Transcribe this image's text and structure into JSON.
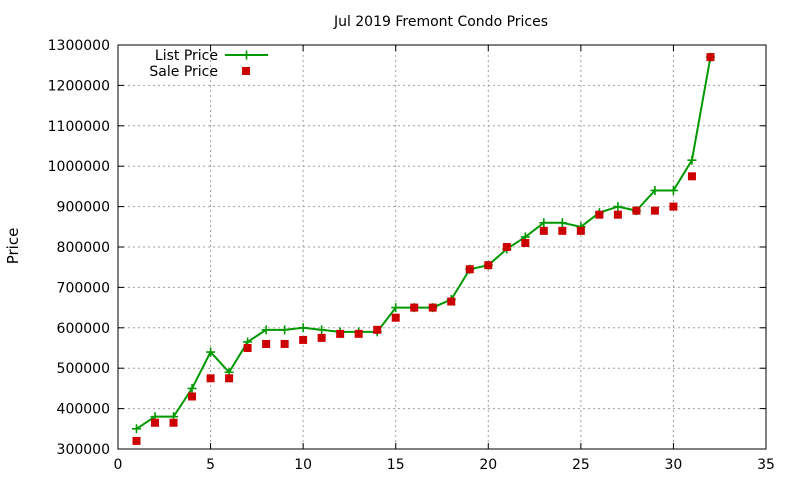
{
  "chart_data": {
    "type": "line",
    "title": "Jul 2019 Fremont Condo Prices",
    "xlabel": "",
    "ylabel": "Price",
    "xlim": [
      0,
      35
    ],
    "ylim": [
      300000,
      1300000
    ],
    "xticks": [
      0,
      5,
      10,
      15,
      20,
      25,
      30,
      35
    ],
    "yticks": [
      300000,
      400000,
      500000,
      600000,
      700000,
      800000,
      900000,
      1000000,
      1100000,
      1200000,
      1300000
    ],
    "grid": true,
    "legend_position": "top-left",
    "series": [
      {
        "name": "List Price",
        "style": "line-plus",
        "color": "#009900",
        "x": [
          1,
          2,
          3,
          4,
          5,
          6,
          7,
          8,
          9,
          10,
          11,
          12,
          13,
          14,
          15,
          16,
          17,
          18,
          19,
          20,
          21,
          22,
          23,
          24,
          25,
          26,
          27,
          28,
          29,
          30,
          31,
          32
        ],
        "y": [
          350000,
          380000,
          380000,
          450000,
          540000,
          490000,
          565000,
          595000,
          595000,
          600000,
          595000,
          590000,
          590000,
          590000,
          650000,
          650000,
          650000,
          670000,
          745000,
          755000,
          795000,
          825000,
          860000,
          860000,
          850000,
          885000,
          900000,
          890000,
          940000,
          940000,
          1015000,
          1270000
        ]
      },
      {
        "name": "Sale Price",
        "style": "square",
        "color": "#cc0000",
        "x": [
          1,
          2,
          3,
          4,
          5,
          6,
          7,
          8,
          9,
          10,
          11,
          12,
          13,
          14,
          15,
          16,
          17,
          18,
          19,
          20,
          21,
          22,
          23,
          24,
          25,
          26,
          27,
          28,
          29,
          30,
          31,
          32
        ],
        "y": [
          320000,
          365000,
          365000,
          430000,
          475000,
          475000,
          550000,
          560000,
          560000,
          570000,
          575000,
          585000,
          585000,
          595000,
          625000,
          650000,
          650000,
          665000,
          745000,
          755000,
          800000,
          810000,
          840000,
          840000,
          840000,
          880000,
          880000,
          890000,
          890000,
          900000,
          975000,
          1270000
        ]
      }
    ]
  }
}
